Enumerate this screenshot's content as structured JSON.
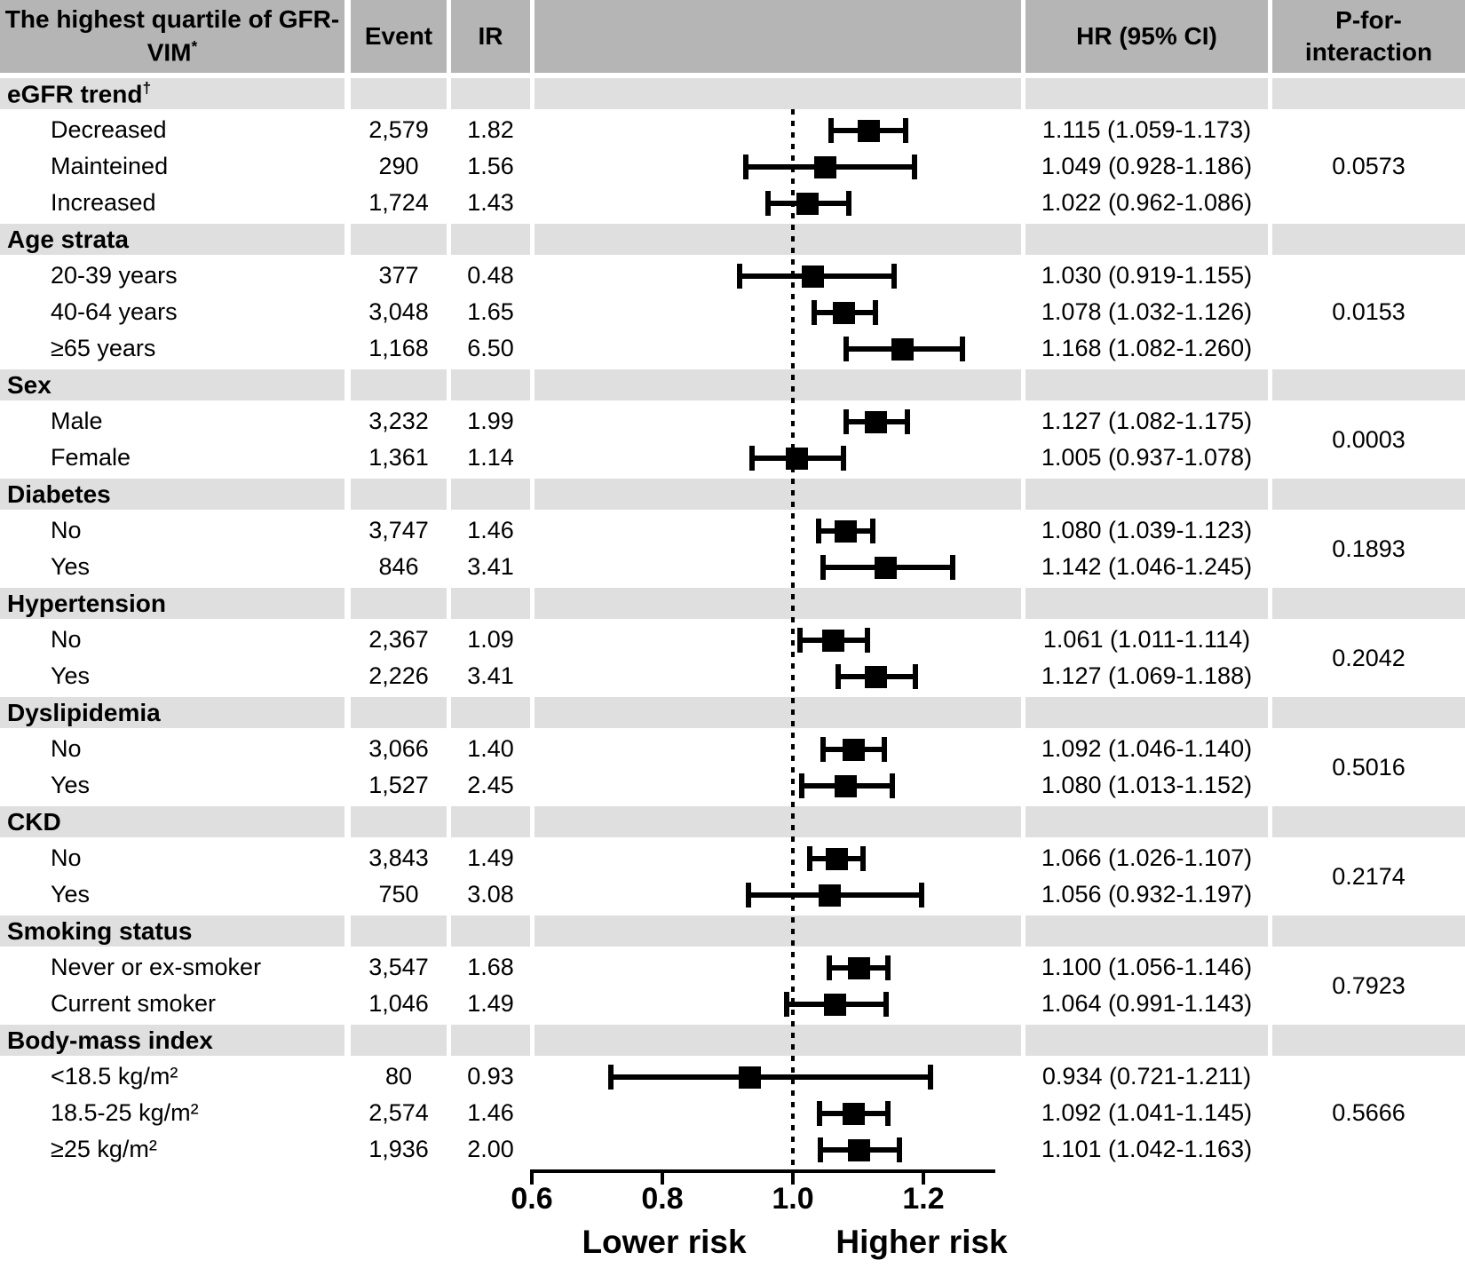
{
  "header": {
    "col_label": "The highest quartile of GFR-VIM",
    "col_label_sup": "*",
    "event": "Event",
    "ir": "IR",
    "hr": "HR (95% CI)",
    "p": "P-for-interaction"
  },
  "axis": {
    "min": 0.6,
    "line_max": 1.31,
    "ref_value": 1.0,
    "tick_values": [
      0.6,
      0.8,
      1.0,
      1.2
    ],
    "tick_labels": [
      "0.6",
      "0.8",
      "1.0",
      "1.2"
    ],
    "lower_label": "Lower risk",
    "higher_label": "Higher risk"
  },
  "colors": {
    "header_bg": "#b5b5b5",
    "section_bg": "#dfdfdf",
    "marker": "#000000"
  },
  "chart_data": {
    "type": "scatter",
    "subtype": "forest-plot",
    "x_range": [
      0.6,
      1.31
    ],
    "grid": false,
    "sections": [
      {
        "label": "eGFR trend",
        "sup": "†",
        "p_for_interaction": "0.0573",
        "rows": [
          {
            "label": "Decreased",
            "event": "2,579",
            "ir": "1.82",
            "hr_label": "1.115 (1.059-1.173)",
            "hr": 1.115,
            "ci_low": 1.059,
            "ci_high": 1.173
          },
          {
            "label": "Mainteined",
            "event": "290",
            "ir": "1.56",
            "hr_label": "1.049 (0.928-1.186)",
            "hr": 1.049,
            "ci_low": 0.928,
            "ci_high": 1.186
          },
          {
            "label": "Increased",
            "event": "1,724",
            "ir": "1.43",
            "hr_label": "1.022 (0.962-1.086)",
            "hr": 1.022,
            "ci_low": 0.962,
            "ci_high": 1.086
          }
        ]
      },
      {
        "label": "Age strata",
        "sup": "",
        "p_for_interaction": "0.0153",
        "rows": [
          {
            "label": "20-39 years",
            "event": "377",
            "ir": "0.48",
            "hr_label": "1.030 (0.919-1.155)",
            "hr": 1.03,
            "ci_low": 0.919,
            "ci_high": 1.155
          },
          {
            "label": "40-64 years",
            "event": "3,048",
            "ir": "1.65",
            "hr_label": "1.078 (1.032-1.126)",
            "hr": 1.078,
            "ci_low": 1.032,
            "ci_high": 1.126
          },
          {
            "label": "≥65 years",
            "event": "1,168",
            "ir": "6.50",
            "hr_label": "1.168 (1.082-1.260)",
            "hr": 1.168,
            "ci_low": 1.082,
            "ci_high": 1.26
          }
        ]
      },
      {
        "label": "Sex",
        "sup": "",
        "p_for_interaction": "0.0003",
        "rows": [
          {
            "label": "Male",
            "event": "3,232",
            "ir": "1.99",
            "hr_label": "1.127 (1.082-1.175)",
            "hr": 1.127,
            "ci_low": 1.082,
            "ci_high": 1.175
          },
          {
            "label": "Female",
            "event": "1,361",
            "ir": "1.14",
            "hr_label": "1.005 (0.937-1.078)",
            "hr": 1.005,
            "ci_low": 0.937,
            "ci_high": 1.078
          }
        ]
      },
      {
        "label": "Diabetes",
        "sup": "",
        "p_for_interaction": "0.1893",
        "rows": [
          {
            "label": "No",
            "event": "3,747",
            "ir": "1.46",
            "hr_label": "1.080 (1.039-1.123)",
            "hr": 1.08,
            "ci_low": 1.039,
            "ci_high": 1.123
          },
          {
            "label": "Yes",
            "event": "846",
            "ir": "3.41",
            "hr_label": "1.142 (1.046-1.245)",
            "hr": 1.142,
            "ci_low": 1.046,
            "ci_high": 1.245
          }
        ]
      },
      {
        "label": "Hypertension",
        "sup": "",
        "p_for_interaction": "0.2042",
        "rows": [
          {
            "label": "No",
            "event": "2,367",
            "ir": "1.09",
            "hr_label": "1.061 (1.011-1.114)",
            "hr": 1.061,
            "ci_low": 1.011,
            "ci_high": 1.114
          },
          {
            "label": "Yes",
            "event": "2,226",
            "ir": "3.41",
            "hr_label": "1.127 (1.069-1.188)",
            "hr": 1.127,
            "ci_low": 1.069,
            "ci_high": 1.188
          }
        ]
      },
      {
        "label": "Dyslipidemia",
        "sup": "",
        "p_for_interaction": "0.5016",
        "rows": [
          {
            "label": "No",
            "event": "3,066",
            "ir": "1.40",
            "hr_label": "1.092 (1.046-1.140)",
            "hr": 1.092,
            "ci_low": 1.046,
            "ci_high": 1.14
          },
          {
            "label": "Yes",
            "event": "1,527",
            "ir": "2.45",
            "hr_label": "1.080 (1.013-1.152)",
            "hr": 1.08,
            "ci_low": 1.013,
            "ci_high": 1.152
          }
        ]
      },
      {
        "label": "CKD",
        "sup": "",
        "p_for_interaction": "0.2174",
        "rows": [
          {
            "label": "No",
            "event": "3,843",
            "ir": "1.49",
            "hr_label": "1.066 (1.026-1.107)",
            "hr": 1.066,
            "ci_low": 1.026,
            "ci_high": 1.107
          },
          {
            "label": "Yes",
            "event": "750",
            "ir": "3.08",
            "hr_label": "1.056 (0.932-1.197)",
            "hr": 1.056,
            "ci_low": 0.932,
            "ci_high": 1.197
          }
        ]
      },
      {
        "label": "Smoking status",
        "sup": "",
        "p_for_interaction": "0.7923",
        "rows": [
          {
            "label": "Never or ex-smoker",
            "event": "3,547",
            "ir": "1.68",
            "hr_label": "1.100 (1.056-1.146)",
            "hr": 1.1,
            "ci_low": 1.056,
            "ci_high": 1.146
          },
          {
            "label": "Current smoker",
            "event": "1,046",
            "ir": "1.49",
            "hr_label": "1.064 (0.991-1.143)",
            "hr": 1.064,
            "ci_low": 0.991,
            "ci_high": 1.143
          }
        ]
      },
      {
        "label": "Body-mass index",
        "sup": "",
        "p_for_interaction": "0.5666",
        "rows": [
          {
            "label": "<18.5 kg/m²",
            "event": "80",
            "ir": "0.93",
            "hr_label": "0.934 (0.721-1.211)",
            "hr": 0.934,
            "ci_low": 0.721,
            "ci_high": 1.211
          },
          {
            "label": "18.5-25 kg/m²",
            "event": "2,574",
            "ir": "1.46",
            "hr_label": "1.092 (1.041-1.145)",
            "hr": 1.092,
            "ci_low": 1.041,
            "ci_high": 1.145
          },
          {
            "label": "≥25 kg/m²",
            "event": "1,936",
            "ir": "2.00",
            "hr_label": "1.101 (1.042-1.163)",
            "hr": 1.101,
            "ci_low": 1.042,
            "ci_high": 1.163
          }
        ]
      }
    ]
  }
}
